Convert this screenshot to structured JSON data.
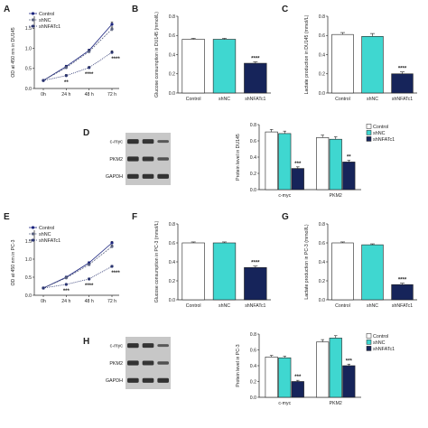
{
  "colors": {
    "control": "#ffffff",
    "shnc": "#3fd7d0",
    "shnfatc1": "#16245a",
    "line_control": "#1a237e",
    "line_shnc": "#5a6280",
    "line_shnfatc1": "#2a3470",
    "axis": "#222222",
    "blot_bg": "#c7c7c7",
    "band": "#2a2a2a"
  },
  "blots": [
    {
      "panel": "D",
      "rows": [
        "c-myc",
        "PKM2",
        "GAPDH"
      ]
    },
    {
      "panel": "H",
      "rows": [
        "c-myc",
        "PKM2",
        "GAPDH"
      ]
    }
  ],
  "chart_data": [
    {
      "panel": "A",
      "type": "line",
      "x": [
        "0h",
        "24 h",
        "48 h",
        "72 h"
      ],
      "ylabel": "OD at 450 nm in DU145",
      "series": [
        {
          "name": "Control",
          "values": [
            0.2,
            0.55,
            0.95,
            1.6
          ],
          "err": [
            0.02,
            0.03,
            0.03,
            0.06
          ]
        },
        {
          "name": "shNC",
          "values": [
            0.2,
            0.52,
            0.92,
            1.48
          ],
          "err": [
            0.02,
            0.03,
            0.03,
            0.05
          ]
        },
        {
          "name": "shNFATc1",
          "values": [
            0.2,
            0.32,
            0.52,
            0.9
          ],
          "err": [
            0.02,
            0.03,
            0.03,
            0.04
          ]
        }
      ],
      "ylim": [
        0,
        1.8
      ],
      "significance": [
        {
          "x": "24 h",
          "text": "**"
        },
        {
          "x": "48 h",
          "text": "****"
        },
        {
          "x": "72 h",
          "text": "****"
        }
      ]
    },
    {
      "panel": "B",
      "type": "bar",
      "categories": [
        "Control",
        "shNC",
        "shNFATc1"
      ],
      "values": [
        0.56,
        0.56,
        0.31
      ],
      "err": [
        0.01,
        0.01,
        0.015
      ],
      "ylabel": "Glucose consumption in DU145 (mmol/L)",
      "ylim": [
        0,
        0.8
      ],
      "significance": [
        {
          "category": "shNFATc1",
          "text": "****"
        }
      ]
    },
    {
      "panel": "C",
      "type": "bar",
      "categories": [
        "Control",
        "shNC",
        "shNFATc1"
      ],
      "values": [
        0.61,
        0.59,
        0.2
      ],
      "err": [
        0.02,
        0.03,
        0.02
      ],
      "ylabel": "Lactate production in DU145 (mmol/L)",
      "ylim": [
        0,
        0.8
      ],
      "significance": [
        {
          "category": "shNFATc1",
          "text": "****"
        }
      ]
    },
    {
      "panel": "D",
      "type": "bar",
      "categories": [
        "c-myc",
        "PKM2"
      ],
      "series": [
        {
          "name": "Control",
          "values": [
            0.71,
            0.64
          ],
          "err": [
            0.03,
            0.03
          ]
        },
        {
          "name": "shNC",
          "values": [
            0.69,
            0.62
          ],
          "err": [
            0.03,
            0.03
          ]
        },
        {
          "name": "shNFATc1",
          "values": [
            0.26,
            0.34
          ],
          "err": [
            0.02,
            0.02
          ]
        }
      ],
      "ylabel": "Protein level in DU145",
      "ylim": [
        0,
        0.8
      ],
      "significance": [
        {
          "category": "c-myc",
          "text": "***"
        },
        {
          "category": "PKM2",
          "text": "**"
        }
      ]
    },
    {
      "panel": "E",
      "type": "line",
      "x": [
        "0h",
        "24 h",
        "48 h",
        "72 h"
      ],
      "ylabel": "OD at 450 nm in PC-3",
      "series": [
        {
          "name": "Control",
          "values": [
            0.2,
            0.5,
            0.9,
            1.45
          ],
          "err": [
            0.02,
            0.03,
            0.03,
            0.04
          ]
        },
        {
          "name": "shNC",
          "values": [
            0.2,
            0.48,
            0.85,
            1.35
          ],
          "err": [
            0.02,
            0.03,
            0.03,
            0.04
          ]
        },
        {
          "name": "shNFATc1",
          "values": [
            0.2,
            0.3,
            0.45,
            0.8
          ],
          "err": [
            0.02,
            0.02,
            0.03,
            0.03
          ]
        }
      ],
      "ylim": [
        0,
        1.8
      ],
      "significance": [
        {
          "x": "24 h",
          "text": "***"
        },
        {
          "x": "48 h",
          "text": "****"
        },
        {
          "x": "72 h",
          "text": "****"
        }
      ]
    },
    {
      "panel": "F",
      "type": "bar",
      "categories": [
        "Control",
        "shNC",
        "shNFATc1"
      ],
      "values": [
        0.6,
        0.6,
        0.34
      ],
      "err": [
        0.01,
        0.01,
        0.015
      ],
      "ylabel": "Glucose consumption in PC-3 (mmol/L)",
      "ylim": [
        0,
        0.8
      ],
      "significance": [
        {
          "category": "shNFATc1",
          "text": "****"
        }
      ]
    },
    {
      "panel": "G",
      "type": "bar",
      "categories": [
        "Control",
        "shNC",
        "shNFATc1"
      ],
      "values": [
        0.6,
        0.58,
        0.16
      ],
      "err": [
        0.01,
        0.01,
        0.015
      ],
      "ylabel": "Lactate production in PC-3 (mmol/L)",
      "ylim": [
        0,
        0.8
      ],
      "significance": [
        {
          "category": "shNFATc1",
          "text": "****"
        }
      ]
    },
    {
      "panel": "H",
      "type": "bar",
      "categories": [
        "c-myc",
        "PKM2"
      ],
      "series": [
        {
          "name": "Control",
          "values": [
            0.51,
            0.7
          ],
          "err": [
            0.02,
            0.03
          ]
        },
        {
          "name": "shNC",
          "values": [
            0.5,
            0.75
          ],
          "err": [
            0.02,
            0.03
          ]
        },
        {
          "name": "shNFATc1",
          "values": [
            0.2,
            0.4
          ],
          "err": [
            0.015,
            0.02
          ]
        }
      ],
      "ylabel": "Protein level in PC-3",
      "ylim": [
        0,
        0.8
      ],
      "significance": [
        {
          "category": "c-myc",
          "text": "***"
        },
        {
          "category": "PKM2",
          "text": "***"
        }
      ]
    }
  ]
}
